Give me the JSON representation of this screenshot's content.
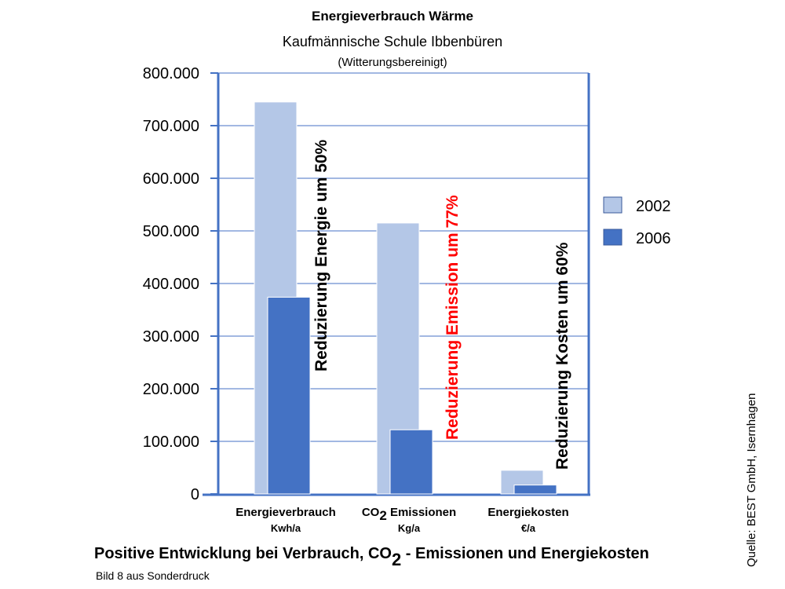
{
  "chart_data": {
    "type": "bar",
    "title": "Energieverbrauch Wärme",
    "subtitle": "Kaufmännische Schule Ibbenbüren",
    "note": "(Witterungsbereinigt)",
    "categories": [
      {
        "pre": "Energieverbrauch",
        "sub": "",
        "post": "",
        "unit": "Kwh/a"
      },
      {
        "pre": "CO",
        "sub": "2",
        "post": " Emissionen",
        "unit": "Kg/a"
      },
      {
        "pre": "Energiekosten",
        "sub": "",
        "post": "",
        "unit": "€/a"
      }
    ],
    "series": [
      {
        "name": "2002",
        "color": "#b4c7e7",
        "values": [
          745000,
          515000,
          45000
        ]
      },
      {
        "name": "2006",
        "color": "#4472c4",
        "values": [
          374000,
          122000,
          17000
        ]
      }
    ],
    "ylim": [
      0,
      800000
    ],
    "yticks": [
      {
        "value": 0,
        "label": "0"
      },
      {
        "value": 100000,
        "label": "100.000"
      },
      {
        "value": 200000,
        "label": "200.000"
      },
      {
        "value": 300000,
        "label": "300.000"
      },
      {
        "value": 400000,
        "label": "400.000"
      },
      {
        "value": 500000,
        "label": "500.000"
      },
      {
        "value": 600000,
        "label": "600.000"
      },
      {
        "value": 700000,
        "label": "700.000"
      },
      {
        "value": 800000,
        "label": "800.000"
      }
    ],
    "annotations": [
      {
        "category": 0,
        "text": "Reduzierung Energie um 50%",
        "color": "#000000"
      },
      {
        "category": 1,
        "text": "Reduzierung Emission um 77%",
        "color": "#ff0000"
      },
      {
        "category": 2,
        "text": "Reduzierung Kosten um 60%",
        "color": "#000000"
      }
    ],
    "grid": true,
    "legend_position": "right"
  },
  "footer": {
    "caption_pre": "Positive Entwicklung bei Verbrauch, CO",
    "caption_sub": "2",
    "caption_post": " - Emissionen und Energiekosten",
    "note": "Bild 8 aus Sonderdruck"
  },
  "source": "Quelle: BEST GmbH, Isernhagen",
  "colors": {
    "axis": "#4472c4",
    "grid": "#4472c4"
  }
}
